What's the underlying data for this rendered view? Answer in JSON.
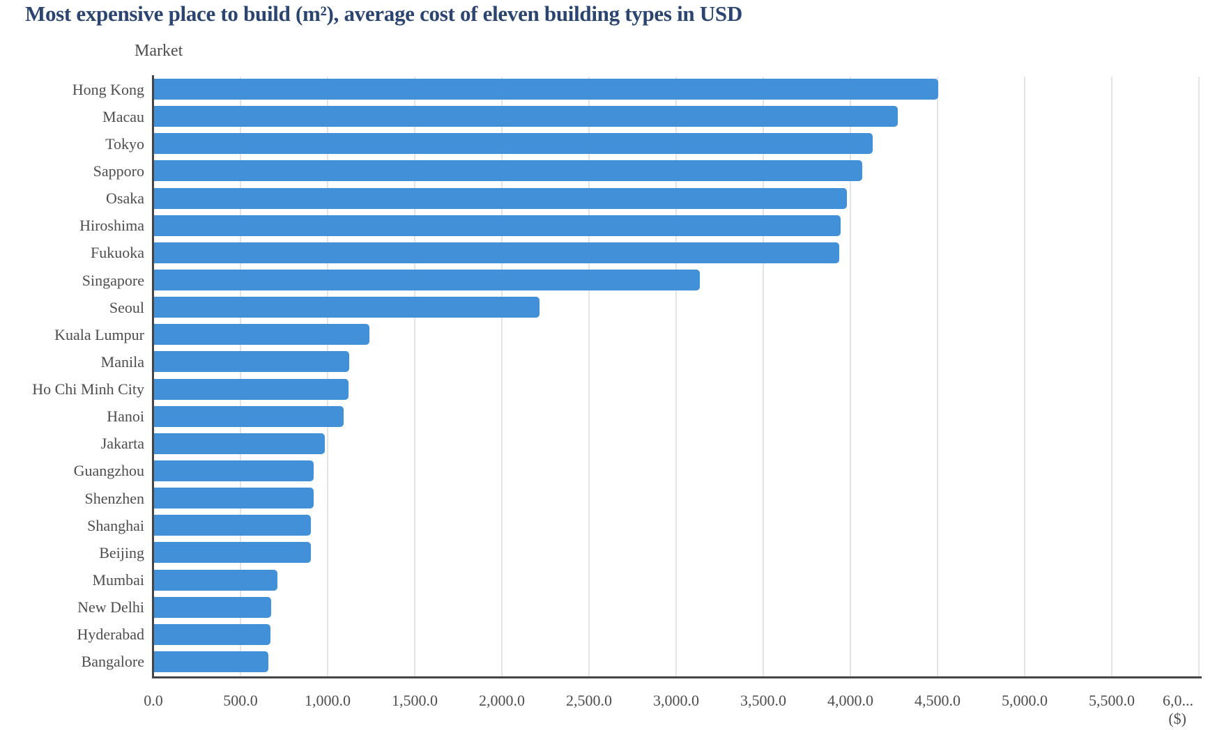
{
  "chart_data": {
    "type": "bar",
    "orientation": "horizontal",
    "title": "Most expensive place to build (m²), average cost of eleven building types in USD",
    "ylabel": "Market",
    "xlabel_unit": "($)",
    "categories": [
      "Hong Kong",
      "Macau",
      "Tokyo",
      "Sapporo",
      "Osaka",
      "Hiroshima",
      "Fukuoka",
      "Singapore",
      "Seoul",
      "Kuala Lumpur",
      "Manila",
      "Ho Chi Minh City",
      "Hanoi",
      "Jakarta",
      "Guangzhou",
      "Shenzhen",
      "Shanghai",
      "Beijing",
      "Mumbai",
      "New Delhi",
      "Hyderabad",
      "Bangalore"
    ],
    "values": [
      4500,
      4268,
      4124,
      4064,
      3976,
      3940,
      3932,
      3130,
      2210,
      1236,
      1120,
      1116,
      1088,
      980,
      916,
      916,
      900,
      898,
      708,
      670,
      668,
      656
    ],
    "xlim": [
      0,
      6000
    ],
    "x_tick_values": [
      0,
      500,
      1000,
      1500,
      2000,
      2500,
      3000,
      3500,
      4000,
      4500,
      5000,
      5500,
      6000
    ],
    "x_tick_labels": [
      "0.0",
      "500.0",
      "1,000.0",
      "1,500.0",
      "2,000.0",
      "2,500.0",
      "3,000.0",
      "3,500.0",
      "4,000.0",
      "4,500.0",
      "5,000.0",
      "5,500.0",
      "6,0..."
    ],
    "grid": true,
    "legend": "none",
    "colors": {
      "bar": "#4190d8",
      "title": "#2b4570",
      "axis_text": "#4d4d4d",
      "axis_line": "#454545",
      "gridline": "#e4e4e4"
    }
  }
}
